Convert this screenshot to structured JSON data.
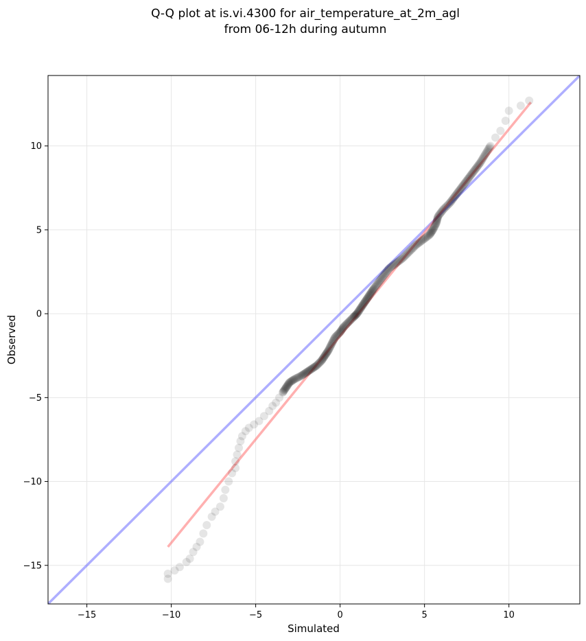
{
  "chart_data": {
    "type": "scatter",
    "title_line1": "Q-Q plot at is.vi.4300 for air_temperature_at_2m_agl",
    "title_line2": "from 06-12h during autumn",
    "xlabel": "Simulated",
    "ylabel": "Observed",
    "xlim": [
      -17.3,
      14.2
    ],
    "ylim": [
      -17.3,
      14.2
    ],
    "xticks": [
      -15,
      -10,
      -5,
      0,
      5,
      10
    ],
    "yticks": [
      -15,
      -10,
      -5,
      0,
      5,
      10
    ],
    "xtick_labels": [
      "−15",
      "−10",
      "−5",
      "0",
      "5",
      "10"
    ],
    "ytick_labels": [
      "−15",
      "−10",
      "−5",
      "0",
      "5",
      "10"
    ],
    "grid": true,
    "identity_line": {
      "color": "#6b6bff",
      "from": [
        -17.3,
        -17.3
      ],
      "to": [
        14.2,
        14.2
      ]
    },
    "fit_line": {
      "color": "#ff7b7b",
      "from": [
        -10.2,
        -13.9
      ],
      "to": [
        11.3,
        12.6
      ]
    },
    "point_color": "#000000",
    "quantile_curve": [
      [
        -10.2,
        -15.8
      ],
      [
        -10.2,
        -15.5
      ],
      [
        -9.8,
        -15.3
      ],
      [
        -9.5,
        -15.1
      ],
      [
        -9.1,
        -14.8
      ],
      [
        -8.9,
        -14.6
      ],
      [
        -8.7,
        -14.2
      ],
      [
        -8.5,
        -13.9
      ],
      [
        -8.3,
        -13.6
      ],
      [
        -8.1,
        -13.1
      ],
      [
        -7.9,
        -12.6
      ],
      [
        -7.6,
        -12.1
      ],
      [
        -7.4,
        -11.8
      ],
      [
        -7.1,
        -11.5
      ],
      [
        -6.9,
        -11.0
      ],
      [
        -6.8,
        -10.5
      ],
      [
        -6.6,
        -10.0
      ],
      [
        -6.4,
        -9.5
      ],
      [
        -6.2,
        -9.2
      ],
      [
        -6.2,
        -8.8
      ],
      [
        -6.1,
        -8.4
      ],
      [
        -6.0,
        -8.0
      ],
      [
        -5.9,
        -7.6
      ],
      [
        -5.8,
        -7.3
      ],
      [
        -5.6,
        -7.0
      ],
      [
        -5.4,
        -6.8
      ],
      [
        -5.1,
        -6.6
      ],
      [
        -4.8,
        -6.4
      ],
      [
        -4.5,
        -6.1
      ],
      [
        -4.2,
        -5.8
      ],
      [
        -4.0,
        -5.5
      ],
      [
        -3.8,
        -5.3
      ],
      [
        -3.6,
        -5.0
      ],
      [
        -3.4,
        -4.7
      ],
      [
        -3.2,
        -4.4
      ],
      [
        -3.0,
        -4.1
      ],
      [
        -2.7,
        -3.9
      ],
      [
        -2.3,
        -3.7
      ],
      [
        -2.0,
        -3.5
      ],
      [
        -1.7,
        -3.3
      ],
      [
        -1.4,
        -3.1
      ],
      [
        -1.1,
        -2.8
      ],
      [
        -0.9,
        -2.5
      ],
      [
        -0.7,
        -2.2
      ],
      [
        -0.5,
        -1.8
      ],
      [
        -0.3,
        -1.4
      ],
      [
        0.0,
        -1.1
      ],
      [
        0.2,
        -0.8
      ],
      [
        0.5,
        -0.5
      ],
      [
        0.8,
        -0.2
      ],
      [
        1.0,
        0.0
      ],
      [
        1.2,
        0.3
      ],
      [
        1.4,
        0.6
      ],
      [
        1.6,
        0.9
      ],
      [
        1.8,
        1.2
      ],
      [
        2.0,
        1.5
      ],
      [
        2.3,
        1.9
      ],
      [
        2.6,
        2.3
      ],
      [
        2.9,
        2.7
      ],
      [
        3.3,
        3.0
      ],
      [
        3.7,
        3.3
      ],
      [
        4.1,
        3.7
      ],
      [
        4.5,
        4.1
      ],
      [
        4.9,
        4.4
      ],
      [
        5.3,
        4.7
      ],
      [
        5.5,
        5.0
      ],
      [
        5.7,
        5.4
      ],
      [
        5.8,
        5.8
      ],
      [
        6.1,
        6.2
      ],
      [
        6.5,
        6.6
      ],
      [
        6.8,
        7.0
      ],
      [
        7.1,
        7.4
      ],
      [
        7.4,
        7.8
      ],
      [
        7.7,
        8.2
      ],
      [
        8.0,
        8.6
      ],
      [
        8.3,
        9.0
      ],
      [
        8.6,
        9.5
      ],
      [
        8.9,
        10.0
      ],
      [
        9.2,
        10.5
      ],
      [
        9.5,
        10.9
      ],
      [
        9.8,
        11.5
      ],
      [
        10.0,
        12.1
      ],
      [
        10.7,
        12.4
      ],
      [
        11.2,
        12.7
      ]
    ]
  }
}
